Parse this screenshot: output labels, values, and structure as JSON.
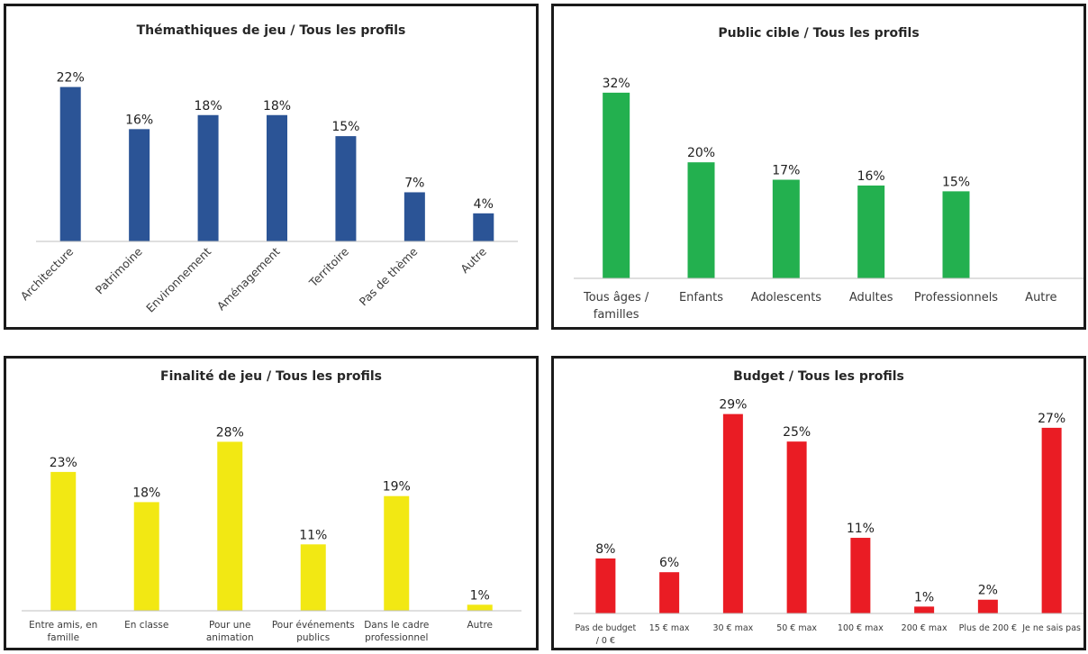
{
  "chart_data": [
    {
      "type": "bar",
      "title": "Thémathiques de jeu / Tous les profils",
      "categories": [
        "Architecture",
        "Patrimoine",
        "Environnement",
        "Aménagement",
        "Territoire",
        "Pas de thème",
        "Autre"
      ],
      "values": [
        22,
        16,
        18,
        18,
        15,
        7,
        4
      ],
      "value_labels": [
        "22%",
        "16%",
        "18%",
        "18%",
        "15%",
        "7%",
        "4%"
      ],
      "unit": "%",
      "color": "#2b5496",
      "label_rotation": -45,
      "ylim": [
        0,
        24
      ],
      "grid": false,
      "legend": "none"
    },
    {
      "type": "bar",
      "title": "Public cible / Tous les profils",
      "categories": [
        "Tous âges / familles",
        "Enfants",
        "Adolescents",
        "Adultes",
        "Professionnels",
        "Autre"
      ],
      "values": [
        32,
        20,
        17,
        16,
        15,
        0
      ],
      "value_labels": [
        "32%",
        "20%",
        "17%",
        "16%",
        "15%",
        ""
      ],
      "unit": "%",
      "color": "#23b04f",
      "ylim": [
        0,
        34
      ],
      "grid": false,
      "legend": "none"
    },
    {
      "type": "bar",
      "title": "Finalité de jeu / Tous les profils",
      "categories": [
        "Entre amis, en famille",
        "En classe",
        "Pour une animation",
        "Pour événements publics",
        "Dans le cadre professionnel",
        "Autre"
      ],
      "values": [
        23,
        18,
        28,
        11,
        19,
        1
      ],
      "value_labels": [
        "23%",
        "18%",
        "28%",
        "11%",
        "19%",
        "1%"
      ],
      "unit": "%",
      "color": "#f2e813",
      "ylim": [
        0,
        30
      ],
      "grid": false,
      "legend": "none"
    },
    {
      "type": "bar",
      "title": "Budget / Tous les profils",
      "categories": [
        "Pas de budget / 0 €",
        "15 € max",
        "30 € max",
        "50 € max",
        "100 € max",
        "200 € max",
        "Plus de 200 €",
        "Je ne sais pas"
      ],
      "values": [
        8,
        6,
        29,
        25,
        11,
        1,
        2,
        27
      ],
      "value_labels": [
        "8%",
        "6%",
        "29%",
        "25%",
        "11%",
        "1%",
        "2%",
        "27%"
      ],
      "unit": "%",
      "color": "#ea1c24",
      "ylim": [
        0,
        30
      ],
      "grid": false,
      "legend": "none"
    }
  ]
}
